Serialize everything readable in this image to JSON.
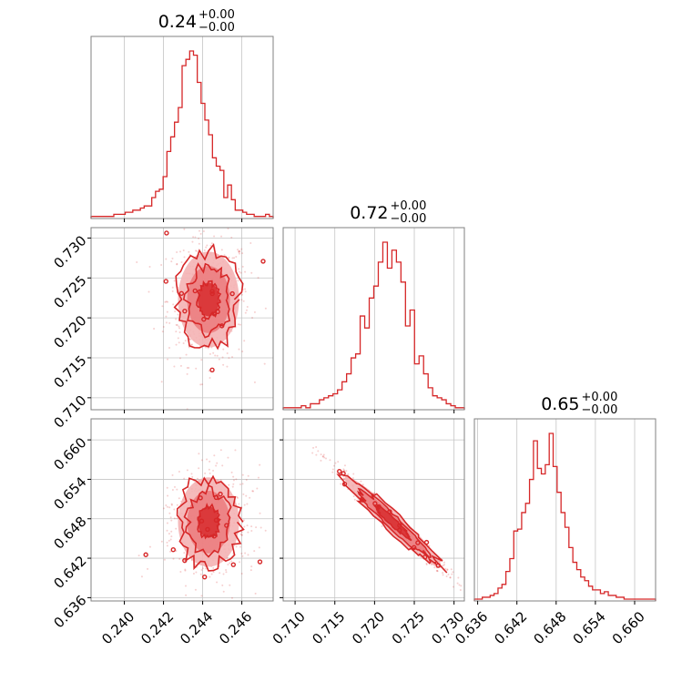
{
  "colors": {
    "series": "#d62728",
    "fill_light": "#f4b3b4",
    "fill_mid": "#eb7a7c",
    "grid": "#c4c4c4",
    "frame": "#808080"
  },
  "params": [
    {
      "median": "0.24",
      "upper": "+0.00",
      "lower": "−0.00"
    },
    {
      "median": "0.72",
      "upper": "+0.00",
      "lower": "−0.00"
    },
    {
      "median": "0.65",
      "upper": "+0.00",
      "lower": "−0.00"
    }
  ],
  "chart_data": {
    "type": "corner",
    "params": [
      {
        "range": [
          0.2383,
          0.2476
        ],
        "ticks": [
          0.24,
          0.242,
          0.244,
          0.246
        ],
        "tick_labels": [
          "0.240",
          "0.242",
          "0.244",
          "0.246"
        ],
        "mean": 0.2443,
        "sd": 0.00078
      },
      {
        "range": [
          0.7085,
          0.7313
        ],
        "ticks": [
          0.71,
          0.715,
          0.72,
          0.725,
          0.73
        ],
        "tick_labels": [
          "0.710",
          "0.715",
          "0.720",
          "0.725",
          "0.730"
        ],
        "mean": 0.7223,
        "sd": 0.003
      },
      {
        "range": [
          0.6355,
          0.6632
        ],
        "ticks": [
          0.636,
          0.642,
          0.648,
          0.654,
          0.66
        ],
        "tick_labels": [
          "0.636",
          "0.642",
          "0.648",
          "0.654",
          "0.660"
        ],
        "mean": 0.6475,
        "sd": 0.0034
      }
    ],
    "histograms": [
      {
        "param": 0,
        "counts": [
          1,
          1,
          1,
          1,
          1,
          1,
          2,
          2,
          2,
          3,
          3,
          4,
          4,
          5,
          6,
          6,
          10,
          13,
          14,
          20,
          32,
          39,
          46,
          53,
          73,
          76,
          80,
          78,
          65,
          55,
          47,
          40,
          29,
          25,
          23,
          10,
          16,
          9,
          4,
          4,
          3,
          2,
          2,
          1,
          1,
          1,
          2,
          1
        ]
      },
      {
        "param": 1,
        "counts": [
          1,
          1,
          1,
          1,
          2,
          1,
          3,
          3,
          5,
          6,
          7,
          8,
          10,
          14,
          18,
          26,
          28,
          47,
          41,
          56,
          62,
          74,
          84,
          71,
          80,
          74,
          64,
          42,
          50,
          23,
          27,
          18,
          11,
          7,
          6,
          5,
          3,
          2,
          1,
          1
        ]
      },
      {
        "param": 2,
        "counts": [
          1,
          1,
          2,
          2,
          3,
          4,
          7,
          9,
          16,
          23,
          38,
          39,
          48,
          53,
          66,
          87,
          72,
          69,
          74,
          91,
          73,
          59,
          48,
          40,
          29,
          21,
          17,
          13,
          11,
          8,
          6,
          6,
          4,
          5,
          3,
          3,
          2,
          2,
          1,
          1,
          1,
          1,
          1,
          1,
          1,
          1
        ]
      }
    ],
    "pairs": [
      {
        "x": 0,
        "y": 1,
        "correlation": 0.0
      },
      {
        "x": 0,
        "y": 2,
        "correlation": 0.0
      },
      {
        "x": 1,
        "y": 2,
        "correlation": -0.99
      }
    ],
    "grid": true
  }
}
